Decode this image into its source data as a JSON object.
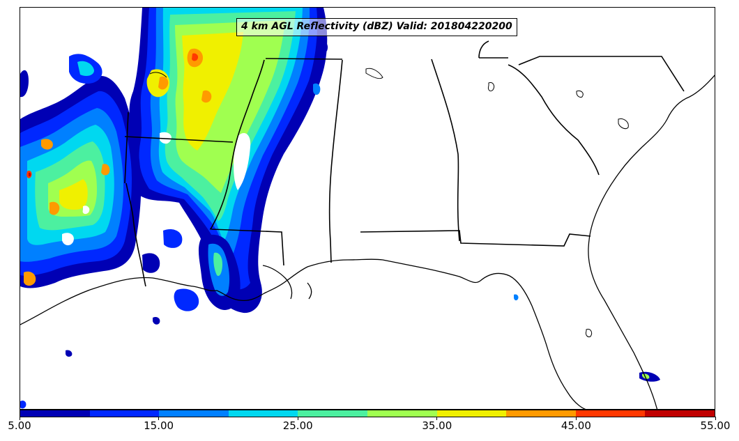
{
  "title": "4 km AGL Reflectivity (dBZ) Valid: 201804220200",
  "colorbar": {
    "tick_labels": [
      "5.00",
      "15.00",
      "25.00",
      "35.00",
      "45.00",
      "55.00"
    ],
    "min": 5,
    "max": 55,
    "colors": [
      "#0000b4",
      "#0028ff",
      "#0080ff",
      "#00d8f0",
      "#4cf0a0",
      "#a0ff50",
      "#f0f000",
      "#ff9a00",
      "#ff3800",
      "#c00000"
    ]
  },
  "map": {
    "region": "Southeastern United States",
    "variable": "4 km AGL Reflectivity",
    "units": "dBZ",
    "valid_time": "201804220200"
  }
}
